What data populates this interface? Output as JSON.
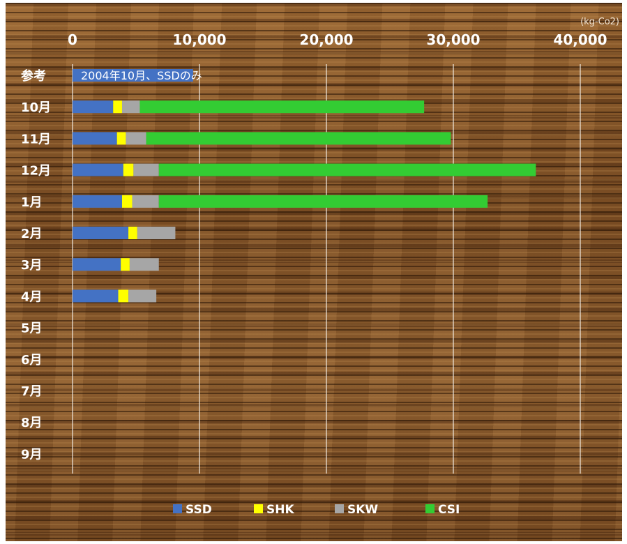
{
  "chart_data": {
    "type": "bar",
    "orientation": "horizontal",
    "stacked": true,
    "unit": "(kg-Co2)",
    "xlim": [
      0,
      40000
    ],
    "x_ticks": [
      0,
      10000,
      20000,
      30000,
      40000
    ],
    "x_tick_labels": [
      "0",
      "10,000",
      "20,000",
      "30,000",
      "40,000"
    ],
    "axis_position": "top",
    "grid": true,
    "legend_position": "bottom",
    "categories": [
      "参考",
      "10月",
      "11月",
      "12月",
      "1月",
      "2月",
      "3月",
      "4月",
      "5月",
      "6月",
      "7月",
      "8月",
      "9月"
    ],
    "series": [
      {
        "name": "SSD",
        "color": "#4472c4",
        "values": [
          9500,
          3200,
          3500,
          4000,
          3900,
          4400,
          3800,
          3600,
          0,
          0,
          0,
          0,
          0
        ]
      },
      {
        "name": "SHK",
        "color": "#ffff00",
        "values": [
          0,
          700,
          700,
          800,
          800,
          700,
          700,
          800,
          0,
          0,
          0,
          0,
          0
        ]
      },
      {
        "name": "SKW",
        "color": "#a6a6a6",
        "values": [
          0,
          1400,
          1600,
          2000,
          2100,
          3000,
          2300,
          2200,
          0,
          0,
          0,
          0,
          0
        ]
      },
      {
        "name": "CSI",
        "color": "#33cc33",
        "values": [
          0,
          22400,
          24000,
          29700,
          25900,
          0,
          0,
          0,
          0,
          0,
          0,
          0,
          0
        ]
      }
    ],
    "annotations": [
      {
        "category": "参考",
        "text": "2004年10月、SSDのみ"
      }
    ]
  }
}
